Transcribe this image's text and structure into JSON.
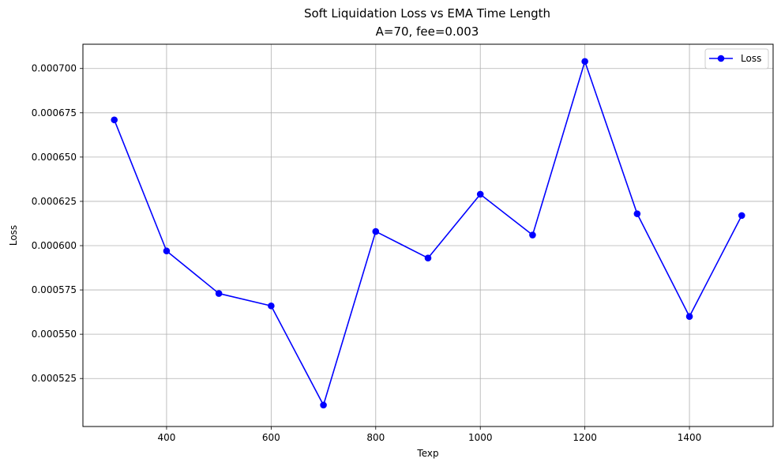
{
  "chart_data": {
    "type": "line",
    "title": "Soft Liquidation Loss vs EMA Time Length",
    "subtitle": "A=70, fee=0.003",
    "xlabel": "Texp",
    "ylabel": "Loss",
    "x": [
      300,
      400,
      500,
      600,
      700,
      800,
      900,
      1000,
      1100,
      1200,
      1300,
      1400,
      1500
    ],
    "series": [
      {
        "name": "Loss",
        "color": "#0000ff",
        "marker": "circle",
        "values": [
          0.000671,
          0.000597,
          0.000573,
          0.000566,
          0.00051,
          0.000608,
          0.000593,
          0.000629,
          0.000606,
          0.000704,
          0.000618,
          0.00056,
          0.000617
        ]
      }
    ],
    "xlim": [
      240,
      1560
    ],
    "ylim": [
      0.0004979,
      0.0007137
    ],
    "xticks": [
      400,
      600,
      800,
      1000,
      1200,
      1400
    ],
    "xtick_labels": [
      "400",
      "600",
      "800",
      "1000",
      "1200",
      "1400"
    ],
    "yticks": [
      0.000525,
      0.00055,
      0.000575,
      0.0006,
      0.000625,
      0.00065,
      0.000675,
      0.0007
    ],
    "ytick_labels": [
      "0.000525",
      "0.000550",
      "0.000575",
      "0.000600",
      "0.000625",
      "0.000650",
      "0.000675",
      "0.000700"
    ],
    "grid": true,
    "legend_position": "top-right"
  }
}
